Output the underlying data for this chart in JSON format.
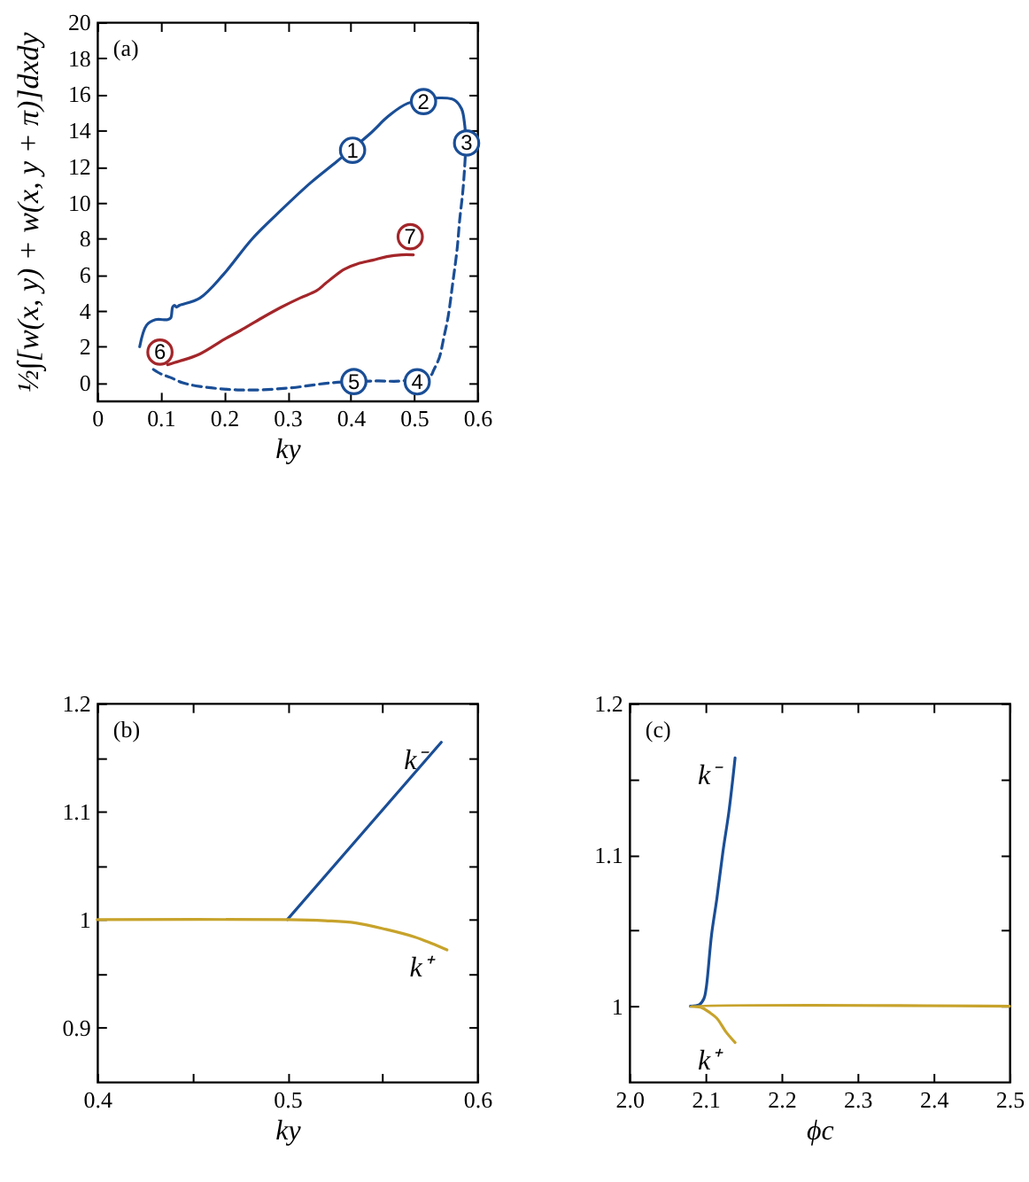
{
  "chart_data": [
    {
      "type": "line",
      "xlabel": "ky",
      "ylabel": "½∫[w(x, y) + w(x, y + π)]dxdy",
      "xlim": [
        0,
        0.6
      ],
      "ylim": [
        -1,
        20
      ],
      "xticks": [
        0,
        0.1,
        0.2,
        0.3,
        0.4,
        0.5,
        0.6
      ],
      "yticks": [
        0,
        2,
        4,
        6,
        8,
        10,
        12,
        14,
        16,
        18,
        20
      ],
      "series": [
        {
          "color": "#1a4e96",
          "line_style": "solid",
          "x": [
            0.067,
            0.078,
            0.092,
            0.111,
            0.116,
            0.119,
            0.122,
            0.125,
            0.13,
            0.162,
            0.199,
            0.245,
            0.291,
            0.337,
            0.379,
            0.43,
            0.46,
            0.49,
            0.54,
            0.563,
            0.575,
            0.58,
            0.582
          ],
          "values": [
            2.0,
            3.2,
            3.5,
            3.5,
            3.6,
            4.2,
            4.3,
            4.2,
            4.3,
            4.7,
            6.0,
            8.0,
            9.6,
            11.1,
            12.3,
            13.8,
            14.8,
            15.5,
            15.8,
            15.7,
            15.2,
            14.3,
            13.3
          ]
        },
        {
          "color": "#1a4e96",
          "line_style": "dashed",
          "x": [
            0.582,
            0.58,
            0.577,
            0.572,
            0.568,
            0.561,
            0.554,
            0.547,
            0.54,
            0.531,
            0.526,
            0.48,
            0.44,
            0.37,
            0.3,
            0.226,
            0.162,
            0.135,
            0.115,
            0.1,
            0.086
          ],
          "values": [
            13.3,
            12.0,
            10.6,
            9.0,
            7.4,
            5.5,
            3.7,
            2.5,
            1.4,
            0.7,
            0.4,
            0.1,
            0.1,
            0.0,
            -0.3,
            -0.4,
            -0.2,
            0.0,
            0.3,
            0.5,
            0.8
          ]
        },
        {
          "color": "#a3262a",
          "line_style": "solid",
          "x": [
            0.111,
            0.13,
            0.162,
            0.2,
            0.226,
            0.26,
            0.291,
            0.32,
            0.346,
            0.36,
            0.374,
            0.39,
            0.411,
            0.435,
            0.457,
            0.48,
            0.499
          ],
          "values": [
            1.0,
            1.2,
            1.6,
            2.4,
            2.9,
            3.6,
            4.2,
            4.7,
            5.1,
            5.5,
            5.9,
            6.3,
            6.6,
            6.8,
            7.0,
            7.1,
            7.1
          ]
        }
      ],
      "annotations": [
        "(a)",
        {
          "text": "1",
          "x": 0.403,
          "y": 12.9
        },
        {
          "text": "2",
          "x": 0.515,
          "y": 15.6
        },
        {
          "text": "3",
          "x": 0.583,
          "y": 13.3
        },
        {
          "text": "4",
          "x": 0.505,
          "y": 0.05
        },
        {
          "text": "5",
          "x": 0.405,
          "y": 0.07
        },
        {
          "text": "6",
          "x": 0.099,
          "y": 1.7
        },
        {
          "text": "7",
          "x": 0.494,
          "y": 8.1
        }
      ]
    },
    {
      "type": "line",
      "xlabel": "ky",
      "xlim": [
        0.4,
        0.6
      ],
      "ylim": [
        0.85,
        1.2
      ],
      "xticks": [
        0.4,
        {
          "value": 0.45,
          "label": null
        },
        0.5,
        {
          "value": 0.55,
          "label": null
        },
        0.6
      ],
      "yticks": [
        0.9,
        {
          "value": 0.95,
          "label": null
        },
        1,
        {
          "value": 1.05,
          "label": null
        },
        1.1,
        {
          "value": 1.15,
          "label": null
        },
        1.2
      ],
      "series": [
        {
          "name": "k⁻",
          "color": "#1a4e96",
          "x": [
            0.5,
            0.581
          ],
          "values": [
            1.0,
            1.164
          ]
        },
        {
          "name": "k⁺",
          "color": "#c7a32b",
          "x": [
            0.4,
            0.5,
            0.52,
            0.536,
            0.552,
            0.567,
            0.576,
            0.584
          ],
          "values": [
            1.0,
            1.0,
            0.999,
            0.997,
            0.991,
            0.984,
            0.978,
            0.972
          ]
        }
      ],
      "annotations": [
        "(b)"
      ]
    },
    {
      "type": "line",
      "xlabel": "ϕc",
      "xlim": [
        2.0,
        2.5
      ],
      "ylim": [
        0.95,
        1.2
      ],
      "xticks": [
        {
          "value": 2,
          "label": "2.0"
        },
        2.1,
        2.2,
        2.3,
        2.4,
        2.5
      ],
      "yticks": [
        1,
        {
          "value": 1.05,
          "label": null
        },
        1.1,
        {
          "value": 1.15,
          "label": null
        },
        1.2
      ],
      "series": [
        {
          "name": "k⁻",
          "color": "#1a4e96",
          "x": [
            2.08,
            2.092,
            2.098,
            2.101,
            2.108,
            2.115,
            2.123,
            2.131,
            2.139
          ],
          "values": [
            1.0,
            1.001,
            1.005,
            1.012,
            1.047,
            1.071,
            1.102,
            1.129,
            1.164
          ]
        },
        {
          "name": "k⁺",
          "color": "#c7a32b",
          "x": [
            2.5,
            2.08,
            2.095,
            2.105,
            2.115,
            2.127,
            2.139
          ],
          "values": [
            1.0,
            1.0,
            0.999,
            0.996,
            0.992,
            0.983,
            0.976
          ]
        }
      ],
      "annotations": [
        "(c)"
      ]
    }
  ]
}
